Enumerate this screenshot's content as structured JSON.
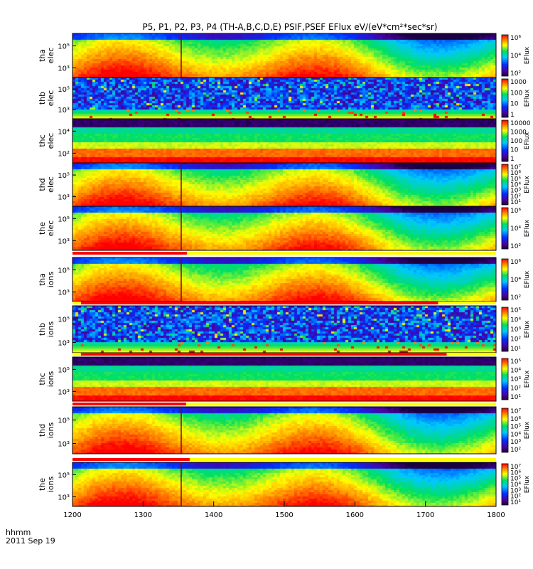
{
  "chart_data": {
    "type": "heatmap",
    "title": "P5, P1, P2, P3, P4 (TH-A,B,C,D,E) PSIF,PSEF EFlux eV/(eV*cm²*sec*sr)",
    "x_axis": {
      "range": [
        1200,
        1800
      ],
      "ticks": [
        "1200",
        "1300",
        "1400",
        "1500",
        "1600",
        "1700",
        "1800"
      ],
      "label_line1": "hhmm",
      "label_line2": "2011 Sep 19"
    },
    "colorbar_unit": "EFlux",
    "panels": [
      {
        "probe": "tha",
        "species": "elec",
        "y_ticks": [
          "10⁵",
          "10³"
        ],
        "cbar_ticks": [
          "10⁶",
          "10⁴",
          "10²"
        ],
        "style": "smooth",
        "vline": 1354
      },
      {
        "probe": "thb",
        "species": "elec",
        "y_ticks": [
          "10⁵",
          "10³"
        ],
        "cbar_ticks": [
          "1000",
          "100",
          "10",
          "1"
        ],
        "style": "noisy",
        "vline": null
      },
      {
        "probe": "thc",
        "species": "elec",
        "y_ticks": [
          "10⁴",
          "10²"
        ],
        "cbar_ticks": [
          "10000",
          "1000",
          "100",
          "10",
          "1"
        ],
        "style": "bands",
        "vline": null
      },
      {
        "probe": "thd",
        "species": "elec",
        "y_ticks": [
          "10⁵",
          "10³"
        ],
        "cbar_ticks": [
          "10⁷",
          "10⁶",
          "10⁵",
          "10⁴",
          "10³",
          "10²",
          "10¹"
        ],
        "style": "smooth",
        "vline": 1354
      },
      {
        "probe": "the",
        "species": "elec",
        "y_ticks": [
          "10⁵",
          "10³"
        ],
        "cbar_ticks": [
          "10⁶",
          "10⁴",
          "10²"
        ],
        "style": "smooth",
        "vline": 1354
      },
      {
        "probe": "tha",
        "species": "ions",
        "y_ticks": [
          "10⁵",
          "10³"
        ],
        "cbar_ticks": [
          "10⁶",
          "10⁴",
          "10²"
        ],
        "style": "smooth",
        "vline": 1354
      },
      {
        "probe": "thb",
        "species": "ions",
        "y_ticks": [
          "10⁵",
          "10³"
        ],
        "cbar_ticks": [
          "10⁵",
          "10⁴",
          "10³",
          "10²",
          "10¹"
        ],
        "style": "noisy",
        "vline": null
      },
      {
        "probe": "thc",
        "species": "ions",
        "y_ticks": [
          "10⁵",
          "10³"
        ],
        "cbar_ticks": [
          "10⁵",
          "10⁴",
          "10³",
          "10²",
          "10¹"
        ],
        "style": "bands",
        "vline": null
      },
      {
        "probe": "thd",
        "species": "ions",
        "y_ticks": [
          "10⁵",
          "10³"
        ],
        "cbar_ticks": [
          "10⁷",
          "10⁶",
          "10⁵",
          "10⁴",
          "10³",
          "10²"
        ],
        "style": "smooth",
        "vline": 1354
      },
      {
        "probe": "the",
        "species": "ions",
        "y_ticks": [
          "10⁵",
          "10³"
        ],
        "cbar_ticks": [
          "10⁷",
          "10⁶",
          "10⁵",
          "10⁴",
          "10³",
          "10²",
          "10¹"
        ],
        "style": "smooth",
        "vline": 1354
      }
    ],
    "mode_bars": [
      {
        "after_panel": 4,
        "red_range": [
          1200,
          1362
        ],
        "yellow_range": [
          1362,
          1800
        ]
      },
      {
        "after_panel": 5,
        "red_range": [
          1212,
          1718
        ],
        "yellow_range": [
          1200,
          1800
        ]
      },
      {
        "after_panel": 6,
        "red_range": [
          1212,
          1730
        ],
        "yellow_range": [
          1200,
          1800
        ]
      },
      {
        "after_panel": 7,
        "red_range": [
          1200,
          1361
        ],
        "yellow_range": [
          1361,
          1800
        ]
      },
      {
        "after_panel": 8,
        "red_range": [
          1200,
          1366
        ],
        "yellow_range": [
          1366,
          1800
        ]
      }
    ]
  }
}
